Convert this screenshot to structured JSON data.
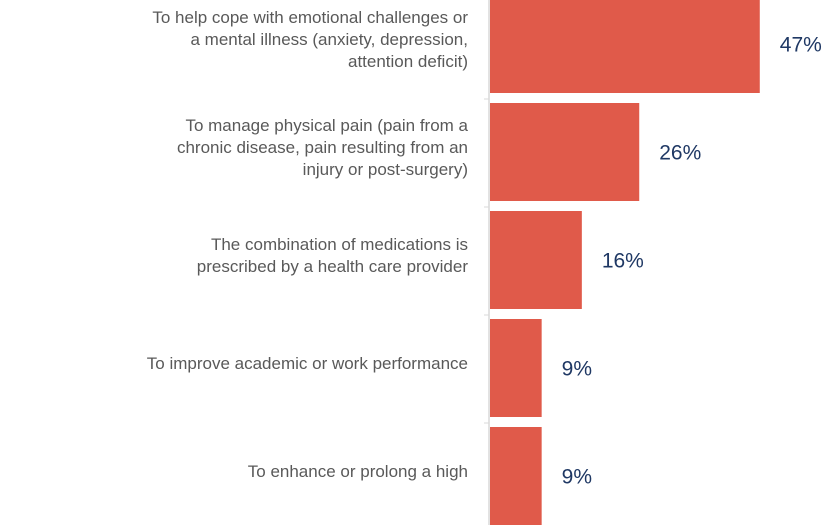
{
  "chart_data": {
    "type": "bar",
    "orientation": "horizontal",
    "categories": [
      "To help cope with  emotional challenges or\na mental illness (anxiety, depression,\nattention deficit)",
      "To manage physical pain (pain from a\nchronic disease, pain resulting from an\ninjury or post-surgery)",
      "The combination of medications is\nprescribed by a health care provider",
      "To improve academic or work performance",
      "To enhance or prolong a high"
    ],
    "values": [
      47,
      26,
      16,
      9,
      9
    ],
    "value_labels": [
      "47%",
      "26%",
      "16%",
      "9%",
      "9%"
    ],
    "color": "#e05a4a"
  }
}
